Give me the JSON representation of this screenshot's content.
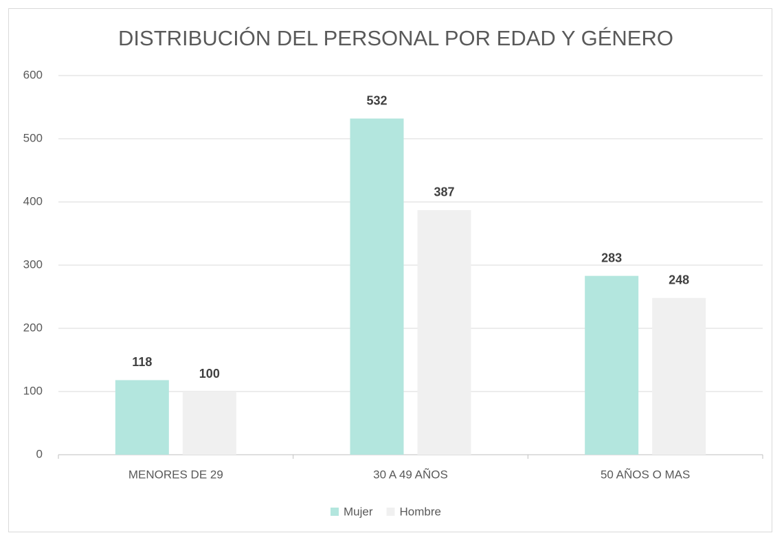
{
  "chart_data": {
    "type": "bar",
    "title": "DISTRIBUCIÓN DEL PERSONAL POR EDAD Y GÉNERO",
    "categories": [
      "MENORES DE 29",
      "30 A 49 AÑOS",
      "50 AÑOS O MAS"
    ],
    "series": [
      {
        "name": "Mujer",
        "color": "#b3e6de",
        "values": [
          118,
          532,
          283
        ]
      },
      {
        "name": "Hombre",
        "color": "#f0f0f0",
        "values": [
          100,
          387,
          248
        ]
      }
    ],
    "ylim": [
      0,
      600
    ],
    "yticks": [
      0,
      100,
      200,
      300,
      400,
      500,
      600
    ],
    "grid": true,
    "legend": "bottom"
  }
}
